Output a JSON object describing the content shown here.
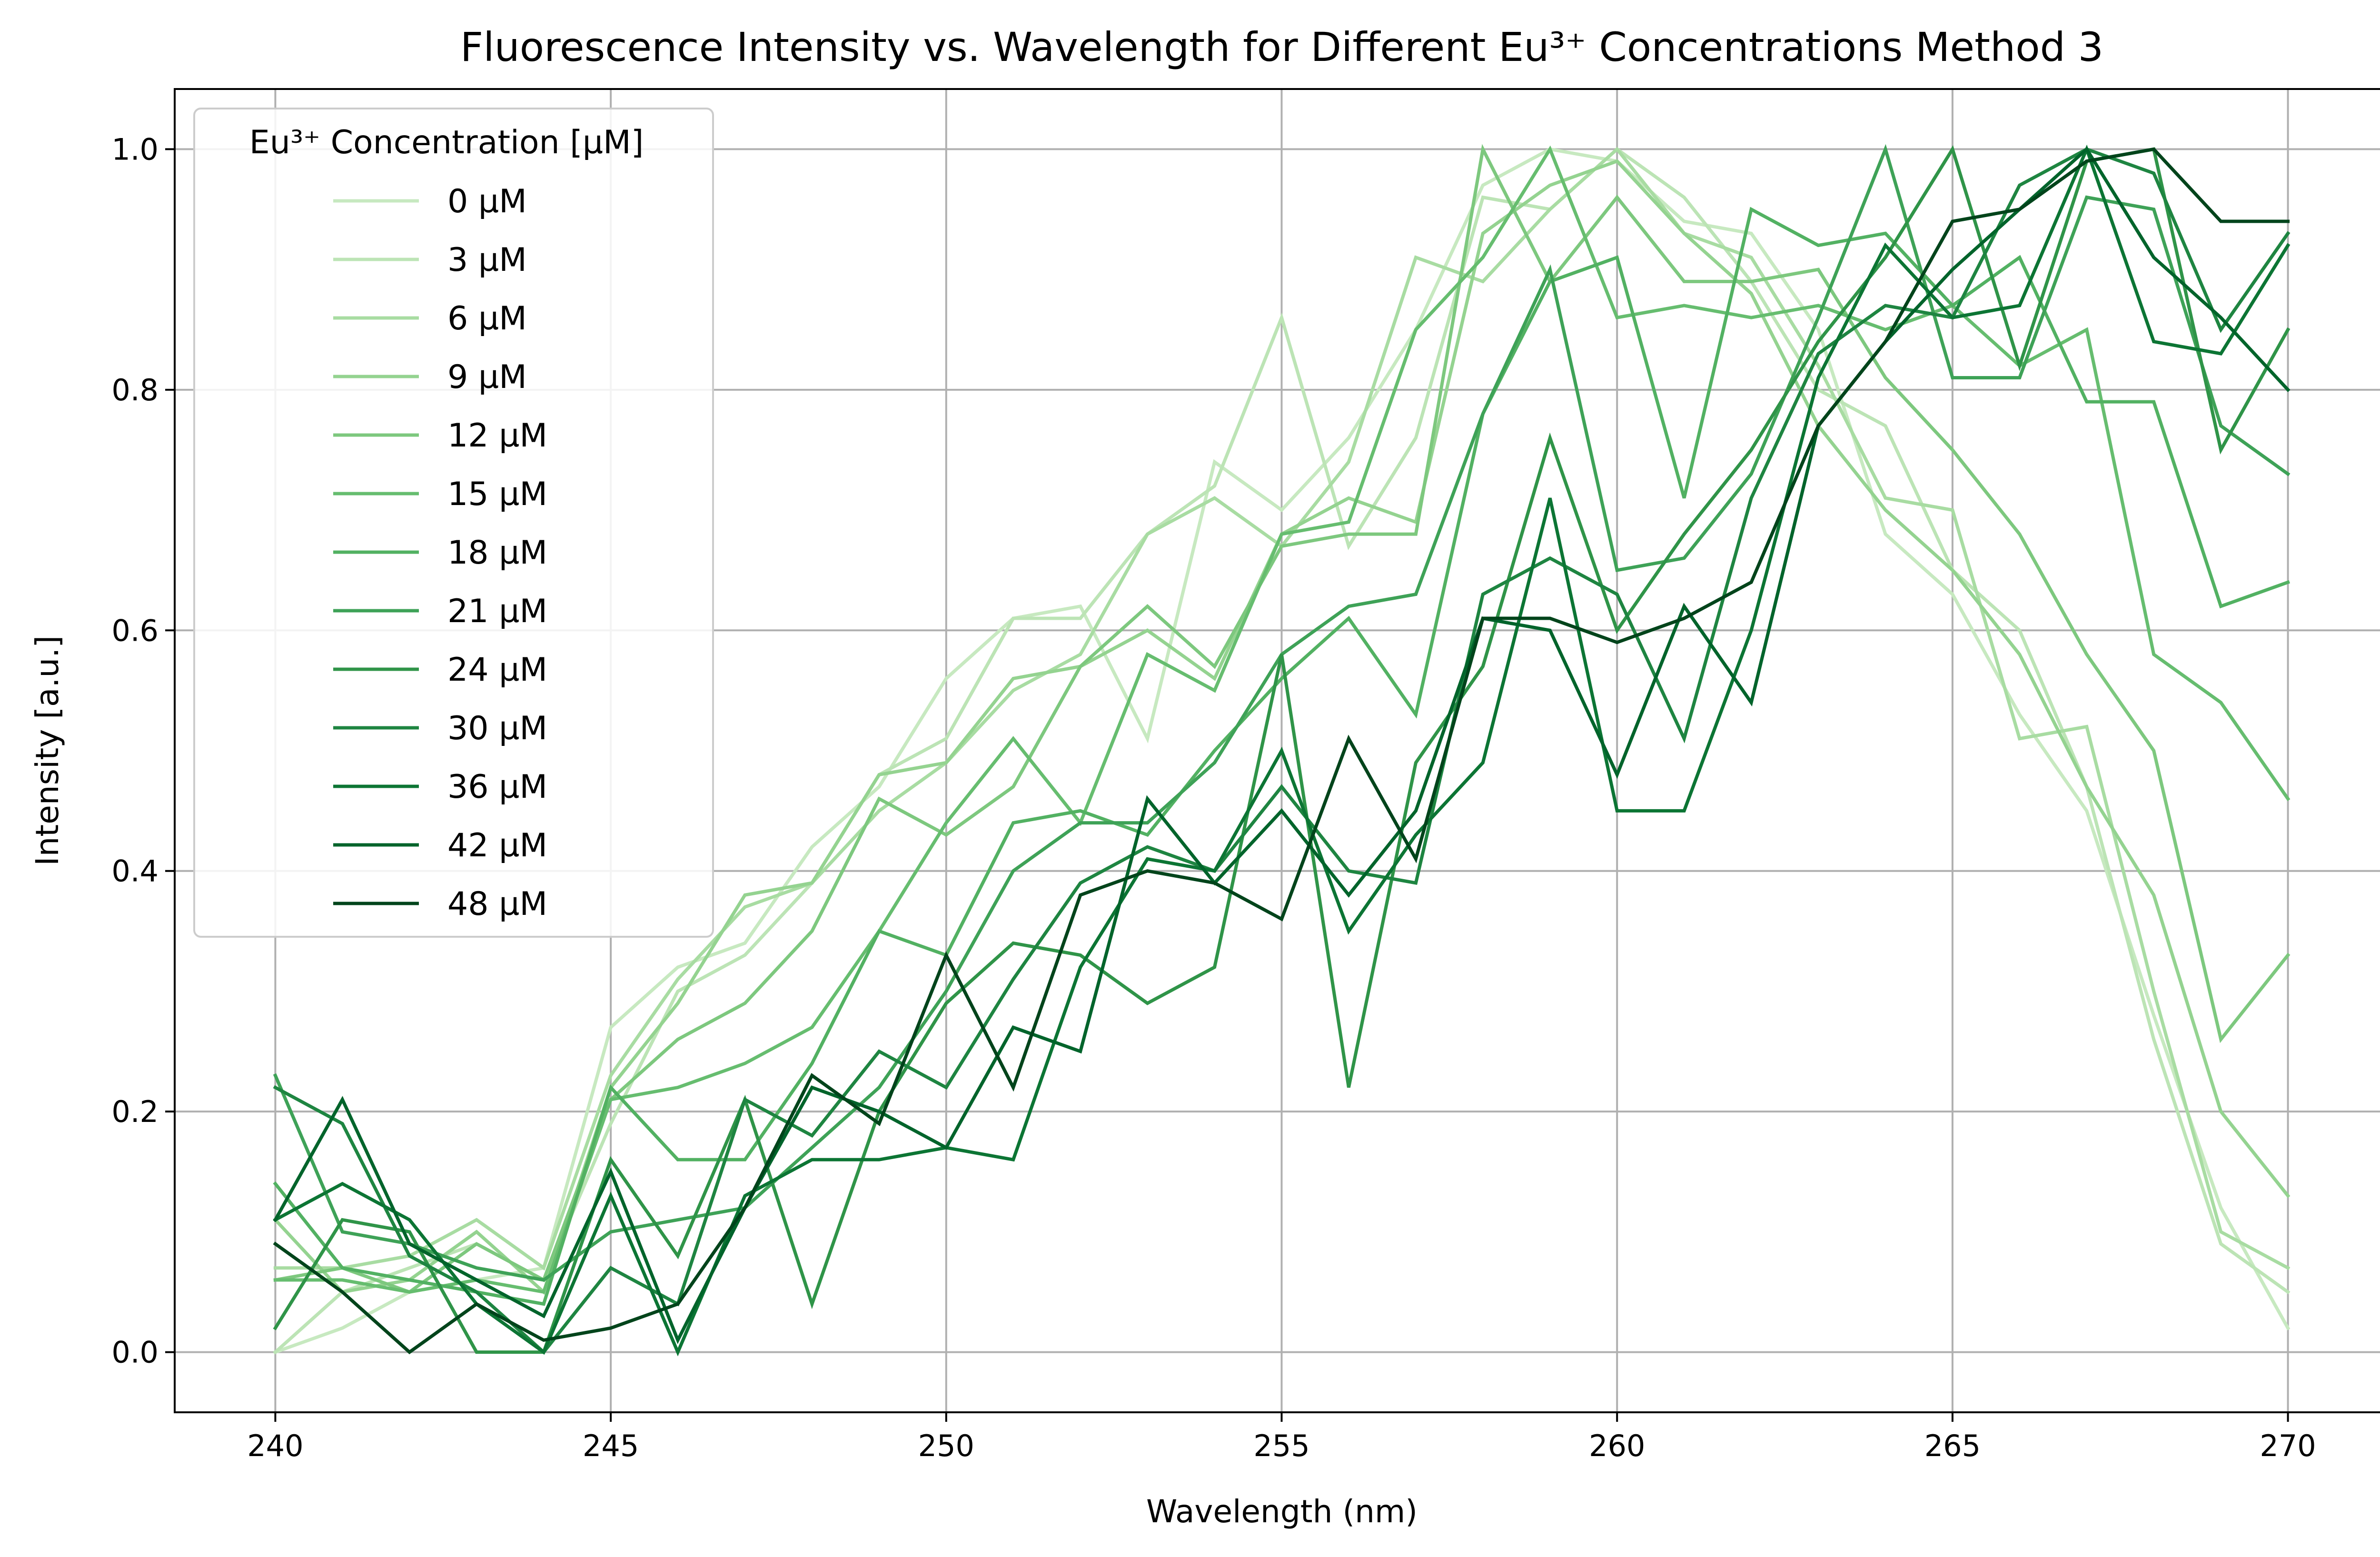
{
  "chart_data": {
    "type": "line",
    "title": "Fluorescence Intensity vs. Wavelength for Different Eu³⁺ Concentrations Method 3",
    "xlabel": "Wavelength (nm)",
    "ylabel": "Intensity [a.u.]",
    "xlim": [
      238.5,
      271.5
    ],
    "ylim": [
      -0.05,
      1.05
    ],
    "xticks": [
      240,
      245,
      250,
      255,
      260,
      265,
      270
    ],
    "xtick_labels": [
      "240",
      "245",
      "250",
      "255",
      "260",
      "265",
      "270"
    ],
    "yticks": [
      0.0,
      0.2,
      0.4,
      0.6,
      0.8,
      1.0
    ],
    "ytick_labels": [
      "0.0",
      "0.2",
      "0.4",
      "0.6",
      "0.8",
      "1.0"
    ],
    "grid": true,
    "legend_title": "Eu³⁺ Concentration [µM]",
    "legend_position": "upper-left",
    "x": [
      240,
      241,
      242,
      243,
      244,
      245,
      246,
      247,
      248,
      249,
      250,
      251,
      252,
      253,
      254,
      255,
      256,
      257,
      258,
      259,
      260,
      261,
      262,
      263,
      264,
      265,
      266,
      267,
      268,
      269,
      270
    ],
    "series": [
      {
        "name": "0 µM",
        "color": "#c7e9c0",
        "values": [
          0.0,
          0.02,
          0.05,
          0.06,
          0.07,
          0.27,
          0.32,
          0.34,
          0.42,
          0.47,
          0.56,
          0.61,
          0.62,
          0.51,
          0.74,
          0.7,
          0.76,
          0.85,
          0.97,
          1.0,
          0.99,
          0.94,
          0.93,
          0.85,
          0.68,
          0.63,
          0.53,
          0.45,
          0.28,
          0.12,
          0.02
        ]
      },
      {
        "name": "3 µM",
        "color": "#bce4b5",
        "values": [
          0.0,
          0.05,
          0.07,
          0.09,
          0.06,
          0.19,
          0.3,
          0.33,
          0.39,
          0.48,
          0.51,
          0.61,
          0.61,
          0.68,
          0.72,
          0.86,
          0.67,
          0.76,
          0.96,
          0.95,
          1.0,
          0.96,
          0.89,
          0.8,
          0.77,
          0.65,
          0.6,
          0.47,
          0.26,
          0.09,
          0.05
        ]
      },
      {
        "name": "6 µM",
        "color": "#a8dca2",
        "values": [
          0.07,
          0.07,
          0.08,
          0.11,
          0.07,
          0.23,
          0.31,
          0.37,
          0.39,
          0.45,
          0.49,
          0.55,
          0.58,
          0.68,
          0.71,
          0.67,
          0.74,
          0.91,
          0.89,
          0.95,
          1.0,
          0.93,
          0.91,
          0.82,
          0.71,
          0.7,
          0.51,
          0.52,
          0.3,
          0.1,
          0.07
        ]
      },
      {
        "name": "9 µM",
        "color": "#94d390",
        "values": [
          0.11,
          0.05,
          0.06,
          0.1,
          0.05,
          0.22,
          0.29,
          0.38,
          0.39,
          0.48,
          0.49,
          0.56,
          0.57,
          0.6,
          0.56,
          0.68,
          0.71,
          0.69,
          0.93,
          0.97,
          0.99,
          0.93,
          0.88,
          0.77,
          0.7,
          0.65,
          0.58,
          0.47,
          0.38,
          0.2,
          0.13
        ]
      },
      {
        "name": "12 µM",
        "color": "#7dc87e",
        "values": [
          0.06,
          0.07,
          0.05,
          0.09,
          0.06,
          0.21,
          0.26,
          0.29,
          0.35,
          0.46,
          0.43,
          0.47,
          0.57,
          0.62,
          0.57,
          0.67,
          0.68,
          0.68,
          1.0,
          0.89,
          0.96,
          0.89,
          0.89,
          0.9,
          0.81,
          0.75,
          0.68,
          0.58,
          0.5,
          0.26,
          0.33
        ]
      },
      {
        "name": "15 µM",
        "color": "#66bd6f",
        "values": [
          0.06,
          0.06,
          0.05,
          0.06,
          0.05,
          0.21,
          0.22,
          0.24,
          0.27,
          0.35,
          0.44,
          0.51,
          0.44,
          0.58,
          0.55,
          0.68,
          0.69,
          0.85,
          0.91,
          1.0,
          0.86,
          0.87,
          0.86,
          0.87,
          0.85,
          0.87,
          0.82,
          0.85,
          0.58,
          0.54,
          0.46
        ]
      },
      {
        "name": "18 µM",
        "color": "#52b162",
        "values": [
          0.14,
          0.07,
          0.06,
          0.05,
          0.04,
          0.22,
          0.16,
          0.16,
          0.24,
          0.35,
          0.33,
          0.44,
          0.45,
          0.43,
          0.5,
          0.56,
          0.61,
          0.53,
          0.78,
          0.89,
          0.91,
          0.71,
          0.95,
          0.92,
          0.93,
          0.87,
          0.91,
          0.79,
          0.79,
          0.62,
          0.64
        ]
      },
      {
        "name": "21 µM",
        "color": "#3ea257",
        "values": [
          0.23,
          0.1,
          0.09,
          0.07,
          0.06,
          0.1,
          0.11,
          0.12,
          0.17,
          0.22,
          0.3,
          0.4,
          0.44,
          0.44,
          0.49,
          0.58,
          0.62,
          0.63,
          0.78,
          0.9,
          0.65,
          0.66,
          0.73,
          0.86,
          1.0,
          0.81,
          0.81,
          0.96,
          0.95,
          0.77,
          0.73
        ]
      },
      {
        "name": "24 µM",
        "color": "#2f9448",
        "values": [
          0.02,
          0.11,
          0.1,
          0.0,
          0.0,
          0.16,
          0.08,
          0.21,
          0.04,
          0.2,
          0.29,
          0.34,
          0.33,
          0.29,
          0.32,
          0.58,
          0.22,
          0.49,
          0.57,
          0.76,
          0.6,
          0.68,
          0.75,
          0.84,
          0.91,
          1.0,
          0.82,
          0.99,
          1.0,
          0.75,
          0.85
        ]
      },
      {
        "name": "30 µM",
        "color": "#1e8541",
        "values": [
          0.22,
          0.19,
          0.08,
          0.05,
          0.0,
          0.07,
          0.04,
          0.21,
          0.18,
          0.25,
          0.22,
          0.31,
          0.39,
          0.42,
          0.4,
          0.47,
          0.4,
          0.39,
          0.63,
          0.66,
          0.63,
          0.51,
          0.71,
          0.83,
          0.87,
          0.86,
          0.97,
          1.0,
          0.98,
          0.85,
          0.93
        ]
      },
      {
        "name": "36 µM",
        "color": "#0c7534",
        "values": [
          0.11,
          0.14,
          0.11,
          0.04,
          0.0,
          0.13,
          0.0,
          0.13,
          0.16,
          0.16,
          0.17,
          0.16,
          0.32,
          0.41,
          0.4,
          0.5,
          0.35,
          0.43,
          0.49,
          0.71,
          0.45,
          0.45,
          0.6,
          0.81,
          0.92,
          0.86,
          0.87,
          1.0,
          0.84,
          0.83,
          0.92
        ]
      },
      {
        "name": "42 µM",
        "color": "#00642b",
        "values": [
          0.11,
          0.21,
          0.09,
          0.06,
          0.03,
          0.15,
          0.01,
          0.12,
          0.22,
          0.2,
          0.17,
          0.27,
          0.25,
          0.46,
          0.39,
          0.45,
          0.38,
          0.45,
          0.61,
          0.6,
          0.48,
          0.62,
          0.54,
          0.77,
          0.84,
          0.9,
          0.95,
          1.0,
          0.91,
          0.86,
          0.8
        ]
      },
      {
        "name": "48 µM",
        "color": "#00441b",
        "values": [
          0.09,
          0.05,
          0.0,
          0.04,
          0.01,
          0.02,
          0.04,
          0.12,
          0.23,
          0.19,
          0.33,
          0.22,
          0.38,
          0.4,
          0.39,
          0.36,
          0.51,
          0.41,
          0.61,
          0.61,
          0.59,
          0.61,
          0.64,
          0.77,
          0.84,
          0.94,
          0.95,
          0.99,
          1.0,
          0.94,
          0.94
        ]
      }
    ]
  }
}
